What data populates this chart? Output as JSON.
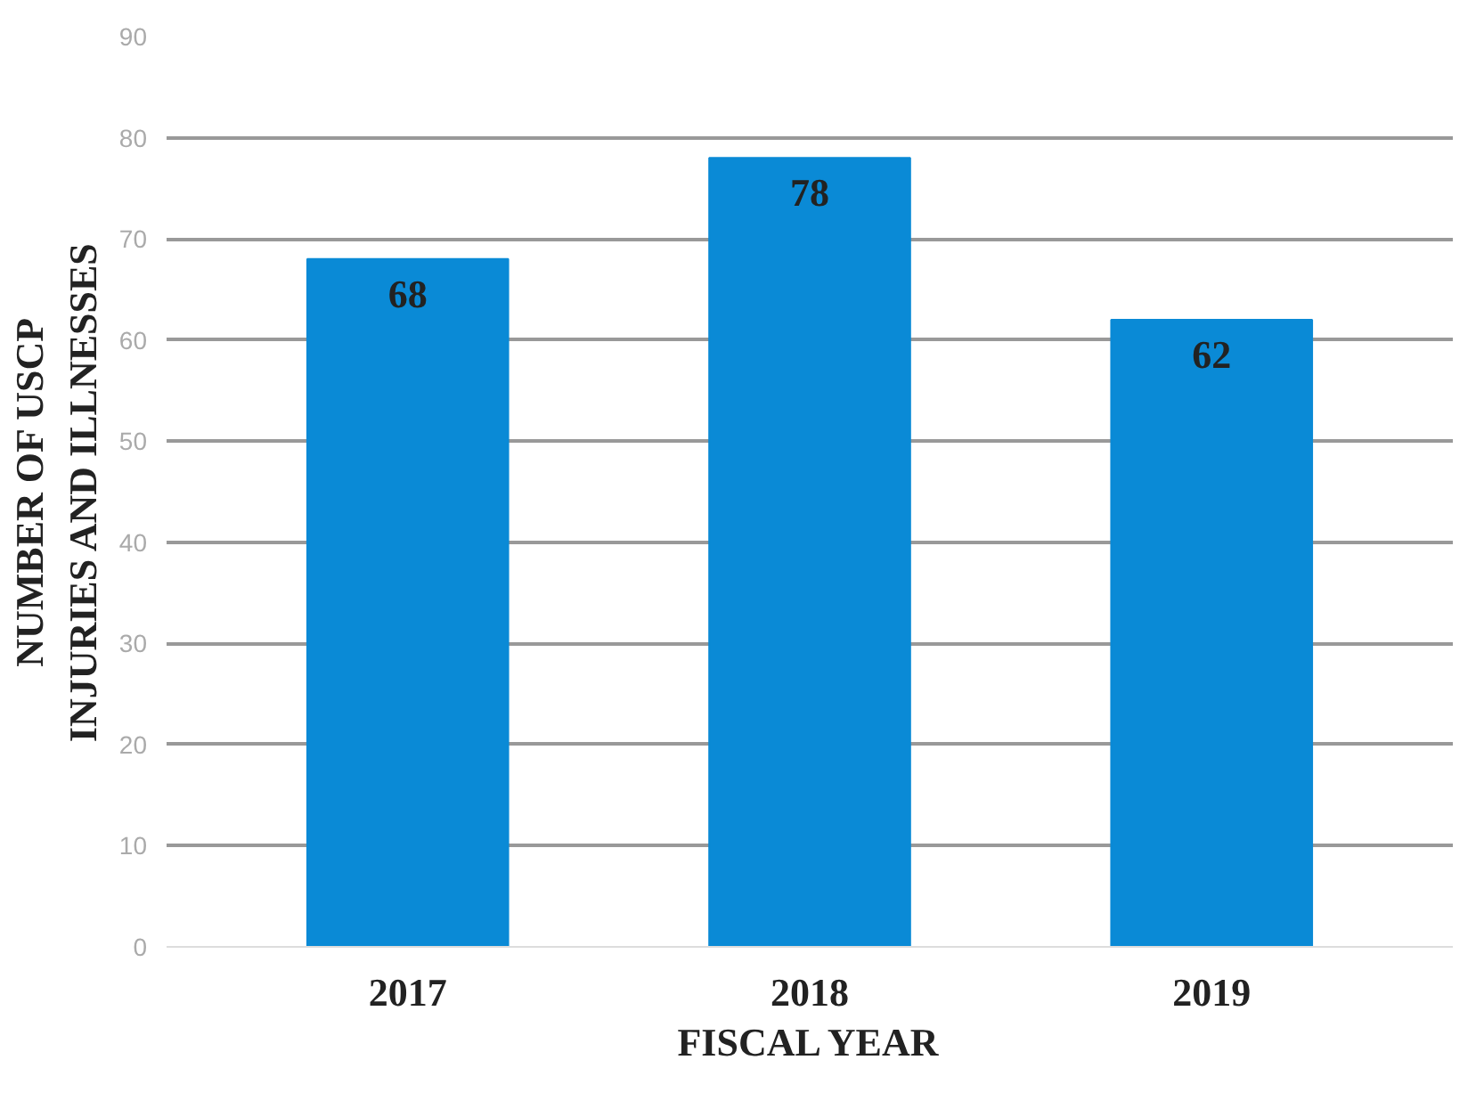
{
  "chart_data": {
    "type": "bar",
    "xlabel": "FISCAL YEAR",
    "ylabel": "NUMBER OF USCP\nINJURIES AND ILLNESSES",
    "categories": [
      "2017",
      "2018",
      "2019"
    ],
    "values": [
      68,
      78,
      62
    ],
    "color": "#0a8ad6",
    "ylim": [
      0,
      90
    ],
    "yticks": [
      0,
      10,
      20,
      30,
      40,
      50,
      60,
      70,
      80,
      90
    ],
    "grid": "y",
    "data_labels": true
  }
}
